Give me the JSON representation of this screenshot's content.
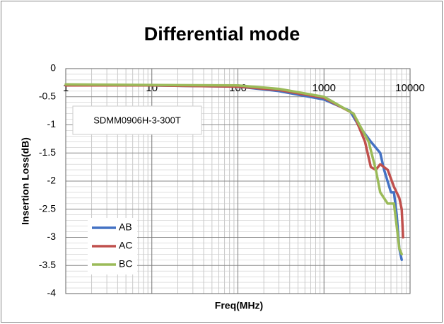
{
  "chart_data": {
    "type": "line",
    "title": "Differential mode",
    "x_label": "Freq(MHz)",
    "y_label": "Insertion Loss(dB)",
    "annotation": "SDMM0906H-3-300T",
    "xlim": [
      1,
      10000
    ],
    "xticks": [
      1,
      10,
      100,
      1000,
      10000
    ],
    "x_log": true,
    "ylim": [
      -4,
      0
    ],
    "yticks": [
      0,
      -0.5,
      -1,
      -1.5,
      -2,
      -2.5,
      -3,
      -3.5,
      -4
    ],
    "grid": true,
    "minor_grid": true,
    "legend": "lower left",
    "series": [
      {
        "name": "AB",
        "color": "#4472c4",
        "x": [
          1,
          10,
          100,
          300,
          1000,
          2000,
          2500,
          3500,
          4500,
          5000,
          6000,
          6500,
          7000,
          7500,
          8000
        ],
        "values": [
          -0.3,
          -0.3,
          -0.32,
          -0.4,
          -0.55,
          -0.75,
          -1.0,
          -1.3,
          -1.5,
          -1.8,
          -2.2,
          -2.2,
          -2.6,
          -3.2,
          -3.4
        ]
      },
      {
        "name": "AC",
        "color": "#c0504d",
        "x": [
          1,
          10,
          100,
          300,
          1000,
          2200,
          3000,
          3500,
          4000,
          4500,
          5500,
          6500,
          7500,
          8000,
          8300
        ],
        "values": [
          -0.3,
          -0.3,
          -0.32,
          -0.38,
          -0.52,
          -0.8,
          -1.3,
          -1.75,
          -1.8,
          -1.7,
          -1.8,
          -2.1,
          -2.3,
          -2.5,
          -3.0
        ]
      },
      {
        "name": "BC",
        "color": "#9bbb59",
        "x": [
          1,
          10,
          100,
          300,
          1000,
          2200,
          3300,
          4000,
          4500,
          5500,
          6500,
          7000,
          7500,
          8000
        ],
        "values": [
          -0.28,
          -0.29,
          -0.3,
          -0.36,
          -0.5,
          -0.8,
          -1.3,
          -1.8,
          -2.2,
          -2.4,
          -2.4,
          -2.8,
          -3.2,
          -3.3
        ]
      }
    ]
  }
}
